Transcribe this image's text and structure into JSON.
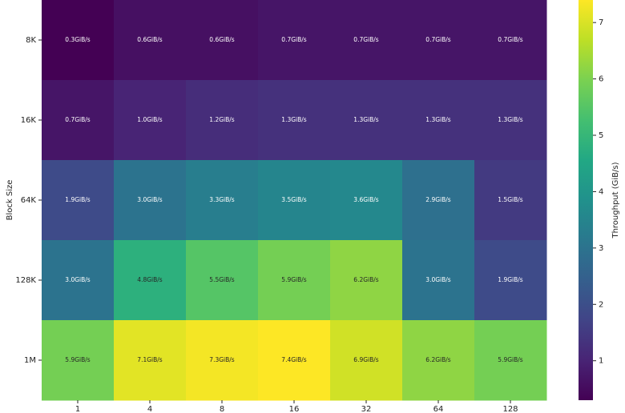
{
  "chart_data": {
    "type": "heatmap",
    "x": [
      "1",
      "4",
      "8",
      "16",
      "32",
      "64",
      "128"
    ],
    "y": [
      "8K",
      "16K",
      "64K",
      "128K",
      "1M"
    ],
    "ylabel": "Block Size",
    "values": [
      [
        0.3,
        0.6,
        0.6,
        0.7,
        0.7,
        0.7,
        0.7
      ],
      [
        0.7,
        1.0,
        1.2,
        1.3,
        1.3,
        1.3,
        1.3
      ],
      [
        1.9,
        3.0,
        3.3,
        3.5,
        3.6,
        2.9,
        1.5
      ],
      [
        3.0,
        4.8,
        5.5,
        5.9,
        6.2,
        3.0,
        1.9
      ],
      [
        5.9,
        7.1,
        7.3,
        7.4,
        6.9,
        6.2,
        5.9
      ]
    ],
    "value_labels": [
      [
        "0.3GiB/s",
        "0.6GiB/s",
        "0.6GiB/s",
        "0.7GiB/s",
        "0.7GiB/s",
        "0.7GiB/s",
        "0.7GiB/s"
      ],
      [
        "0.7GiB/s",
        "1.0GiB/s",
        "1.2GiB/s",
        "1.3GiB/s",
        "1.3GiB/s",
        "1.3GiB/s",
        "1.3GiB/s"
      ],
      [
        "1.9GiB/s",
        "3.0GiB/s",
        "3.3GiB/s",
        "3.5GiB/s",
        "3.6GiB/s",
        "2.9GiB/s",
        "1.5GiB/s"
      ],
      [
        "3.0GiB/s",
        "4.8GiB/s",
        "5.5GiB/s",
        "5.9GiB/s",
        "6.2GiB/s",
        "3.0GiB/s",
        "1.9GiB/s"
      ],
      [
        "5.9GiB/s",
        "7.1GiB/s",
        "7.3GiB/s",
        "7.4GiB/s",
        "6.9GiB/s",
        "6.2GiB/s",
        "5.9GiB/s"
      ]
    ],
    "colormap": "viridis",
    "clim": [
      0.3,
      7.4
    ],
    "cticks": [
      1,
      2,
      3,
      4,
      5,
      6,
      7
    ],
    "colorbar_label": "Throughput (GiB/s)"
  }
}
